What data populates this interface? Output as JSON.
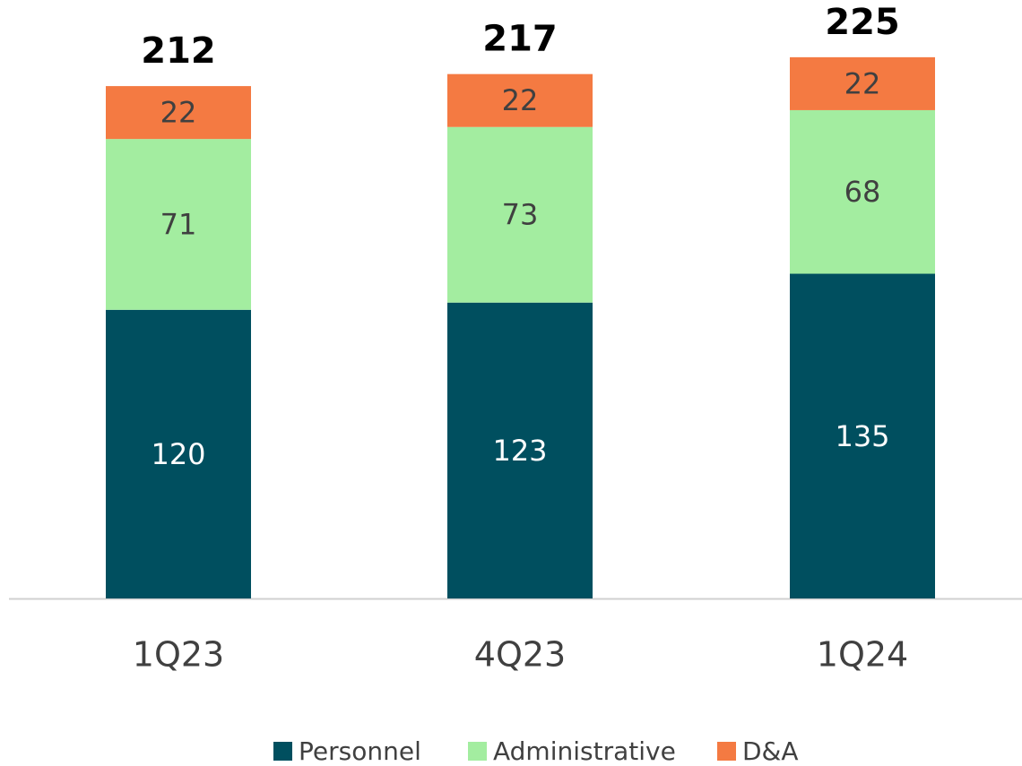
{
  "chart_data": {
    "type": "bar",
    "stacked": true,
    "categories": [
      "1Q23",
      "4Q23",
      "1Q24"
    ],
    "series": [
      {
        "name": "Personnel",
        "color": "#004f5f",
        "values": [
          120,
          123,
          135
        ]
      },
      {
        "name": "Administrative",
        "color": "#a3eda0",
        "values": [
          71,
          73,
          68
        ]
      },
      {
        "name": "D&A",
        "color": "#f47a42",
        "values": [
          22,
          22,
          22
        ]
      }
    ],
    "totals": [
      212,
      217,
      225
    ],
    "legend": "bottom"
  }
}
